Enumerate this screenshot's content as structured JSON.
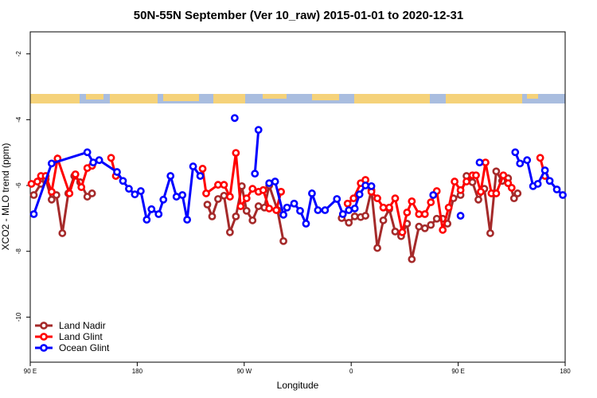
{
  "chart_data": {
    "type": "line",
    "title": "50N-55N September (Ver 10_raw)   2015-01-01 to 2020-12-31",
    "x_label": "Longitude",
    "y_label": "XCO2 - MLO trend (ppm)",
    "xlim": [
      90,
      540
    ],
    "xticks": [
      {
        "value": 90,
        "label": "90 E"
      },
      180,
      {
        "value": 270,
        "label": "90 W"
      },
      {
        "value": 360,
        "label": "0"
      },
      {
        "value": 450,
        "label": "90 E"
      },
      {
        "value": 540,
        "label": "180"
      }
    ],
    "ylim": [
      -11.37,
      -1.33
    ],
    "yticks": [
      -10,
      -8,
      -6,
      -4,
      -2
    ],
    "legend": "bottomleft",
    "series": [
      {
        "name": "Land Nadir",
        "color": "#a52a2a",
        "x": [
          93,
          99,
          103,
          108,
          112,
          117,
          122,
          127,
          132,
          138,
          142,
          null,
          239,
          243,
          248,
          253,
          258,
          263,
          268,
          272,
          277,
          282,
          287,
          291,
          298,
          303,
          null,
          352,
          358,
          363,
          368,
          372,
          377,
          382,
          387,
          392,
          397,
          402,
          407,
          411,
          417,
          422,
          427,
          432,
          437,
          441,
          446,
          452,
          457,
          462,
          467,
          472,
          477,
          482,
          487,
          492,
          497,
          500
        ],
        "values": [
          -6.29,
          -5.95,
          -5.81,
          -6.43,
          -6.29,
          -7.45,
          -6.24,
          -5.71,
          -5.9,
          -6.34,
          -6.24,
          null,
          -6.58,
          -6.94,
          -6.41,
          -6.31,
          -7.42,
          -6.94,
          -6.02,
          -6.77,
          -7.06,
          -6.63,
          -6.67,
          -6.0,
          -6.75,
          -7.69,
          null,
          -6.99,
          -7.13,
          -6.94,
          -6.96,
          -6.92,
          -6.14,
          -7.9,
          -7.06,
          -6.72,
          -7.4,
          -7.54,
          -7.16,
          -8.24,
          -7.25,
          -7.3,
          -7.2,
          -7.01,
          -7.01,
          -7.16,
          -6.39,
          -6.29,
          -5.71,
          -5.9,
          -6.43,
          -6.1,
          -7.45,
          -5.57,
          -5.86,
          -5.78,
          -6.39,
          -6.24
        ]
      },
      {
        "name": "Land Glint",
        "color": "#ff0000",
        "x": [
          91,
          96,
          99,
          103,
          108,
          113,
          123,
          128,
          133,
          138,
          142,
          null,
          158,
          162,
          null,
          235,
          238,
          248,
          253,
          258,
          263,
          267,
          272,
          277,
          282,
          286,
          291,
          297,
          301,
          null,
          357,
          362,
          368,
          372,
          377,
          382,
          387,
          392,
          397,
          403,
          407,
          411,
          417,
          422,
          427,
          432,
          437,
          442,
          447,
          452,
          457,
          462,
          465,
          469,
          473,
          478,
          482,
          488,
          492,
          495,
          null,
          519,
          523
        ],
        "values": [
          -5.95,
          -5.88,
          -5.71,
          -5.71,
          -6.19,
          -5.18,
          -6.24,
          -5.66,
          -6.05,
          -5.47,
          -5.4,
          null,
          -5.16,
          -5.71,
          null,
          -5.49,
          -6.24,
          -5.98,
          -5.98,
          -6.34,
          -5.01,
          -6.63,
          -6.39,
          -6.1,
          -6.19,
          -6.14,
          -6.7,
          -6.75,
          -6.19,
          null,
          -6.55,
          -6.39,
          -5.93,
          -5.83,
          -6.19,
          -6.39,
          -6.67,
          -6.67,
          -6.39,
          -7.42,
          -6.82,
          -6.48,
          -6.87,
          -6.87,
          -6.51,
          -6.17,
          -7.35,
          -6.67,
          -5.88,
          -6.14,
          -5.88,
          -5.69,
          -5.69,
          -6.19,
          -5.3,
          -6.24,
          -6.24,
          -5.69,
          -5.93,
          -6.07,
          null,
          -5.16,
          -5.71
        ]
      },
      {
        "name": "Ocean Glint",
        "color": "#0000ff",
        "x": [
          93,
          108,
          138,
          143,
          148,
          163,
          168,
          173,
          178,
          183,
          188,
          192,
          198,
          202,
          208,
          213,
          218,
          222,
          227,
          233,
          null,
          262,
          null,
          279,
          282,
          null,
          291,
          296,
          303,
          306,
          312,
          317,
          322,
          327,
          332,
          338,
          348,
          353,
          358,
          363,
          367,
          372,
          377,
          null,
          429,
          null,
          452,
          null,
          468,
          null,
          498,
          502,
          508,
          513,
          517,
          523,
          527,
          533,
          538
        ],
        "values": [
          -6.87,
          -5.33,
          -4.99,
          -5.3,
          -5.23,
          -5.59,
          -5.86,
          -6.1,
          -6.27,
          -6.17,
          -7.04,
          -6.72,
          -6.87,
          -6.43,
          -5.71,
          -6.34,
          -6.29,
          -7.04,
          -5.42,
          -5.71,
          null,
          -3.95,
          null,
          -5.64,
          -4.31,
          null,
          -5.93,
          -5.88,
          -6.89,
          -6.67,
          -6.55,
          -6.77,
          -7.16,
          -6.24,
          -6.75,
          -6.75,
          -6.41,
          -6.87,
          -6.75,
          -6.7,
          -6.27,
          -6.0,
          -6.02,
          null,
          -6.29,
          null,
          -6.92,
          null,
          -5.3,
          null,
          -4.99,
          -5.33,
          -5.23,
          -6.02,
          -5.95,
          -5.54,
          -5.86,
          -6.12,
          -6.29
        ]
      }
    ]
  }
}
